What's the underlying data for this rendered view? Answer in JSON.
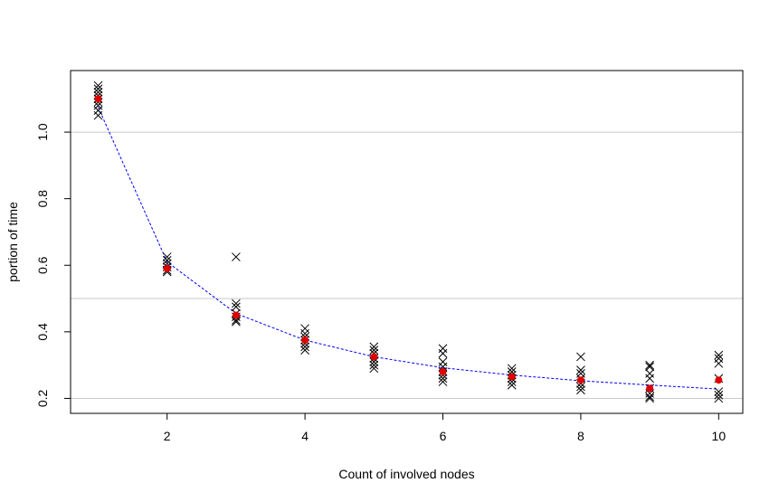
{
  "chart_data": {
    "type": "scatter",
    "title": "",
    "xlabel": "Count of involved nodes",
    "ylabel": "portion of time",
    "xlim": [
      0.6,
      10.35
    ],
    "ylim": [
      0.155,
      1.185
    ],
    "x_ticks": [
      2,
      4,
      6,
      8,
      10
    ],
    "x_tick_labels": [
      "2",
      "4",
      "6",
      "8",
      "10"
    ],
    "y_ticks": [
      0.2,
      0.4,
      0.6,
      0.8,
      1.0
    ],
    "y_tick_labels": [
      "0.2",
      "0.4",
      "0.6",
      "0.8",
      "1.0"
    ],
    "grid": true,
    "gridlines_y": [
      0.2,
      0.5,
      1.0
    ],
    "grid_color": "#c8c8c8",
    "legend": "none",
    "series": [
      {
        "kind": "scatter",
        "marker": "x",
        "color": "#000000",
        "points": [
          [
            1,
            1.14
          ],
          [
            1,
            1.13
          ],
          [
            1,
            1.12
          ],
          [
            1,
            1.11
          ],
          [
            1,
            1.1
          ],
          [
            1,
            1.09
          ],
          [
            1,
            1.08
          ],
          [
            1,
            1.065
          ],
          [
            1,
            1.05
          ],
          [
            2,
            0.625
          ],
          [
            2,
            0.615
          ],
          [
            2,
            0.605
          ],
          [
            2,
            0.595
          ],
          [
            2,
            0.585
          ],
          [
            2,
            0.58
          ],
          [
            3,
            0.625
          ],
          [
            3,
            0.485
          ],
          [
            3,
            0.475
          ],
          [
            3,
            0.455
          ],
          [
            3,
            0.445
          ],
          [
            3,
            0.435
          ],
          [
            3,
            0.43
          ],
          [
            4,
            0.41
          ],
          [
            4,
            0.395
          ],
          [
            4,
            0.385
          ],
          [
            4,
            0.375
          ],
          [
            4,
            0.365
          ],
          [
            4,
            0.355
          ],
          [
            4,
            0.345
          ],
          [
            5,
            0.355
          ],
          [
            5,
            0.345
          ],
          [
            5,
            0.335
          ],
          [
            5,
            0.32
          ],
          [
            5,
            0.31
          ],
          [
            5,
            0.3
          ],
          [
            5,
            0.29
          ],
          [
            6,
            0.35
          ],
          [
            6,
            0.335
          ],
          [
            6,
            0.31
          ],
          [
            6,
            0.295
          ],
          [
            6,
            0.28
          ],
          [
            6,
            0.27
          ],
          [
            6,
            0.26
          ],
          [
            6,
            0.25
          ],
          [
            7,
            0.29
          ],
          [
            7,
            0.28
          ],
          [
            7,
            0.27
          ],
          [
            7,
            0.26
          ],
          [
            7,
            0.25
          ],
          [
            7,
            0.24
          ],
          [
            8,
            0.325
          ],
          [
            8,
            0.285
          ],
          [
            8,
            0.275
          ],
          [
            8,
            0.26
          ],
          [
            8,
            0.245
          ],
          [
            8,
            0.235
          ],
          [
            8,
            0.225
          ],
          [
            9,
            0.3
          ],
          [
            9,
            0.295
          ],
          [
            9,
            0.275
          ],
          [
            9,
            0.26
          ],
          [
            9,
            0.23
          ],
          [
            9,
            0.215
          ],
          [
            9,
            0.205
          ],
          [
            9,
            0.2
          ],
          [
            10,
            0.33
          ],
          [
            10,
            0.32
          ],
          [
            10,
            0.305
          ],
          [
            10,
            0.26
          ],
          [
            10,
            0.22
          ],
          [
            10,
            0.21
          ],
          [
            10,
            0.2
          ]
        ]
      },
      {
        "kind": "scatter",
        "marker": "filled-circle",
        "color": "#e00000",
        "name": "",
        "points": [
          [
            1,
            1.1
          ],
          [
            2,
            0.59
          ],
          [
            3,
            0.45
          ],
          [
            4,
            0.375
          ],
          [
            5,
            0.325
          ],
          [
            6,
            0.28
          ],
          [
            7,
            0.265
          ],
          [
            8,
            0.255
          ],
          [
            9,
            0.23
          ],
          [
            10,
            0.255
          ]
        ]
      },
      {
        "kind": "line",
        "style": "dashed",
        "color": "#0000ff",
        "name": "",
        "points": [
          [
            1,
            1.075
          ],
          [
            2,
            0.61
          ],
          [
            3,
            0.455
          ],
          [
            4,
            0.375
          ],
          [
            5,
            0.325
          ],
          [
            6,
            0.292
          ],
          [
            7,
            0.27
          ],
          [
            8,
            0.253
          ],
          [
            9,
            0.24
          ],
          [
            10,
            0.228
          ]
        ]
      }
    ]
  }
}
